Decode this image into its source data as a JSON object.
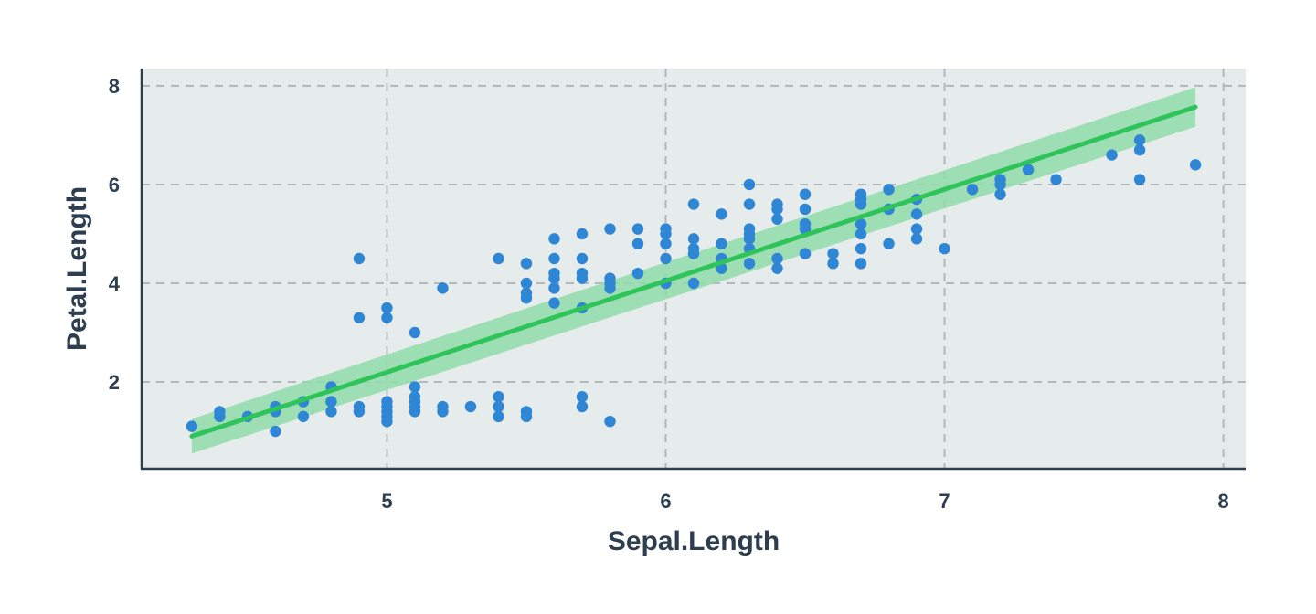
{
  "chart_data": {
    "type": "scatter",
    "xlabel": "Sepal.Length",
    "ylabel": "Petal.Length",
    "xlim": [
      4.12,
      8.08
    ],
    "ylim": [
      0.26,
      8.35
    ],
    "x_ticks": [
      "5",
      "6",
      "7",
      "8"
    ],
    "y_ticks": [
      "2",
      "4",
      "6",
      "8"
    ],
    "grid": true,
    "colors": {
      "points": "#2f86d4",
      "trend": "#2ec45a",
      "band": "#8fdcaa",
      "panel": "#e6ecec",
      "grid": "#b3b8bb",
      "axis": "#2c3e50"
    },
    "points": [
      [
        4.3,
        1.1
      ],
      [
        4.4,
        1.4
      ],
      [
        4.4,
        1.3
      ],
      [
        4.5,
        1.3
      ],
      [
        4.6,
        1.5
      ],
      [
        4.6,
        1.4
      ],
      [
        4.6,
        1.0
      ],
      [
        4.7,
        1.6
      ],
      [
        4.7,
        1.3
      ],
      [
        4.8,
        1.9
      ],
      [
        4.8,
        1.6
      ],
      [
        4.8,
        1.4
      ],
      [
        4.9,
        4.5
      ],
      [
        4.9,
        3.3
      ],
      [
        4.9,
        1.5
      ],
      [
        4.9,
        1.4
      ],
      [
        5.0,
        3.5
      ],
      [
        5.0,
        3.3
      ],
      [
        5.0,
        1.6
      ],
      [
        5.0,
        1.5
      ],
      [
        5.0,
        1.4
      ],
      [
        5.0,
        1.3
      ],
      [
        5.0,
        1.2
      ],
      [
        5.1,
        3.0
      ],
      [
        5.1,
        1.9
      ],
      [
        5.1,
        1.7
      ],
      [
        5.1,
        1.6
      ],
      [
        5.1,
        1.5
      ],
      [
        5.1,
        1.4
      ],
      [
        5.2,
        3.9
      ],
      [
        5.2,
        1.5
      ],
      [
        5.2,
        1.4
      ],
      [
        5.3,
        1.5
      ],
      [
        5.4,
        4.5
      ],
      [
        5.4,
        1.7
      ],
      [
        5.4,
        1.5
      ],
      [
        5.4,
        1.3
      ],
      [
        5.5,
        4.4
      ],
      [
        5.5,
        4.0
      ],
      [
        5.5,
        3.8
      ],
      [
        5.5,
        3.7
      ],
      [
        5.5,
        1.4
      ],
      [
        5.5,
        1.3
      ],
      [
        5.6,
        4.9
      ],
      [
        5.6,
        4.5
      ],
      [
        5.6,
        4.2
      ],
      [
        5.6,
        4.1
      ],
      [
        5.6,
        3.9
      ],
      [
        5.6,
        3.6
      ],
      [
        5.7,
        5.0
      ],
      [
        5.7,
        4.5
      ],
      [
        5.7,
        4.2
      ],
      [
        5.7,
        4.1
      ],
      [
        5.7,
        3.5
      ],
      [
        5.7,
        1.7
      ],
      [
        5.7,
        1.5
      ],
      [
        5.8,
        5.1
      ],
      [
        5.8,
        4.1
      ],
      [
        5.8,
        4.0
      ],
      [
        5.8,
        3.9
      ],
      [
        5.8,
        1.2
      ],
      [
        5.9,
        5.1
      ],
      [
        5.9,
        4.8
      ],
      [
        5.9,
        4.2
      ],
      [
        6.0,
        5.1
      ],
      [
        6.0,
        5.0
      ],
      [
        6.0,
        4.8
      ],
      [
        6.0,
        4.5
      ],
      [
        6.0,
        4.0
      ],
      [
        6.1,
        5.6
      ],
      [
        6.1,
        4.9
      ],
      [
        6.1,
        4.7
      ],
      [
        6.1,
        4.6
      ],
      [
        6.1,
        4.0
      ],
      [
        6.2,
        5.4
      ],
      [
        6.2,
        4.8
      ],
      [
        6.2,
        4.5
      ],
      [
        6.2,
        4.3
      ],
      [
        6.3,
        6.0
      ],
      [
        6.3,
        5.6
      ],
      [
        6.3,
        5.1
      ],
      [
        6.3,
        5.0
      ],
      [
        6.3,
        4.9
      ],
      [
        6.3,
        4.7
      ],
      [
        6.3,
        4.4
      ],
      [
        6.4,
        5.6
      ],
      [
        6.4,
        5.5
      ],
      [
        6.4,
        5.3
      ],
      [
        6.4,
        4.5
      ],
      [
        6.4,
        4.3
      ],
      [
        6.5,
        5.8
      ],
      [
        6.5,
        5.5
      ],
      [
        6.5,
        5.2
      ],
      [
        6.5,
        5.1
      ],
      [
        6.5,
        4.6
      ],
      [
        6.6,
        4.6
      ],
      [
        6.6,
        4.4
      ],
      [
        6.7,
        5.8
      ],
      [
        6.7,
        5.7
      ],
      [
        6.7,
        5.6
      ],
      [
        6.7,
        5.2
      ],
      [
        6.7,
        5.0
      ],
      [
        6.7,
        4.7
      ],
      [
        6.7,
        4.4
      ],
      [
        6.8,
        5.9
      ],
      [
        6.8,
        5.5
      ],
      [
        6.8,
        4.8
      ],
      [
        6.9,
        5.7
      ],
      [
        6.9,
        5.4
      ],
      [
        6.9,
        5.1
      ],
      [
        6.9,
        4.9
      ],
      [
        7.0,
        4.7
      ],
      [
        7.1,
        5.9
      ],
      [
        7.2,
        6.1
      ],
      [
        7.2,
        6.0
      ],
      [
        7.2,
        5.8
      ],
      [
        7.3,
        6.3
      ],
      [
        7.4,
        6.1
      ],
      [
        7.6,
        6.6
      ],
      [
        7.7,
        6.9
      ],
      [
        7.7,
        6.7
      ],
      [
        7.7,
        6.1
      ],
      [
        7.9,
        6.4
      ]
    ],
    "trend_line": {
      "x": [
        4.3,
        7.9
      ],
      "y": [
        0.9,
        7.57
      ]
    },
    "confidence_band": {
      "x": [
        4.3,
        7.9
      ],
      "upper": [
        1.25,
        7.97
      ],
      "lower": [
        0.55,
        7.17
      ]
    }
  }
}
